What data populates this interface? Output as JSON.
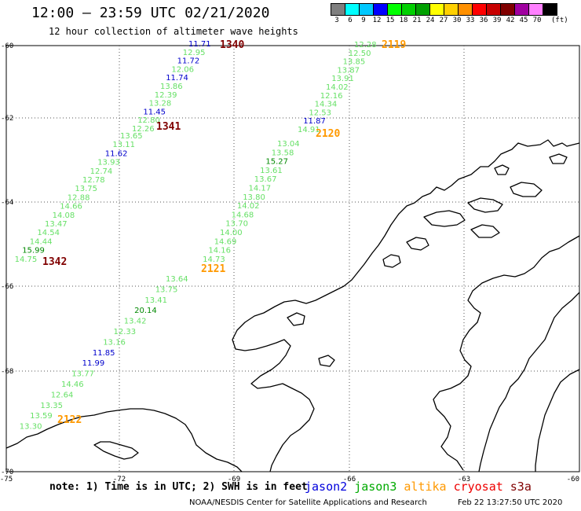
{
  "header": {
    "title": "12:00 – 23:59 UTC 02/21/2020",
    "subtitle": "12 hour collection of altimeter wave heights"
  },
  "legend": {
    "unit": "(ft)",
    "colors": [
      "#7f7f7f",
      "#00ffff",
      "#00c8ff",
      "#0000ff",
      "#00ff00",
      "#00d000",
      "#00a000",
      "#ffff00",
      "#ffd000",
      "#ff9000",
      "#ff0000",
      "#c80000",
      "#800000",
      "#a000a0",
      "#ff80ff",
      "#000000"
    ],
    "labels": [
      "3",
      "6",
      "9",
      "12",
      "15",
      "18",
      "21",
      "24",
      "27",
      "30",
      "33",
      "36",
      "39",
      "42",
      "45",
      "70"
    ]
  },
  "axes": {
    "lat_labels": [
      "-60",
      "-62",
      "-64",
      "-66",
      "-68",
      "-70"
    ],
    "lon_labels": [
      "-75",
      "-72",
      "-69",
      "-66",
      "-63",
      "-60"
    ]
  },
  "track_colors": {
    "light": "#66e066",
    "dark": "#008800",
    "blue": "#0000cc",
    "tag_red": "#800000",
    "tag_orange": "#ff9900"
  },
  "tracks": [
    {
      "tag": "1340",
      "tag_color": "tag_red",
      "points": [
        [
          "11.71",
          "blue"
        ],
        [
          "12.95",
          "light"
        ],
        [
          "11.72",
          "blue"
        ],
        [
          "12.06",
          "light"
        ],
        [
          "11.74",
          "blue"
        ],
        [
          "13.86",
          "light"
        ],
        [
          "12.39",
          "light"
        ],
        [
          "13.28",
          "light"
        ],
        [
          "11.45",
          "blue"
        ],
        [
          "12.80",
          "light"
        ],
        [
          "12.26",
          "light"
        ]
      ]
    },
    {
      "tag": "1341",
      "tag_color": "tag_red",
      "points": [
        [
          "13.65",
          "light"
        ],
        [
          "13.11",
          "light"
        ],
        [
          "11.62",
          "blue"
        ],
        [
          "13.93",
          "light"
        ],
        [
          "12.74",
          "light"
        ],
        [
          "12.78",
          "light"
        ],
        [
          "13.75",
          "light"
        ],
        [
          "12.88",
          "light"
        ],
        [
          "14.66",
          "light"
        ],
        [
          "14.08",
          "light"
        ],
        [
          "13.47",
          "light"
        ],
        [
          "14.54",
          "light"
        ],
        [
          "14.44",
          "light"
        ],
        [
          "15.99",
          "dark"
        ],
        [
          "14.75",
          "light"
        ]
      ]
    },
    {
      "tag": "1342",
      "tag_color": "tag_red",
      "points": []
    },
    {
      "tag": "2119",
      "tag_color": "tag_orange",
      "points": [
        [
          "12.28",
          "light"
        ],
        [
          "12.50",
          "light"
        ],
        [
          "13.85",
          "light"
        ],
        [
          "13.87",
          "light"
        ],
        [
          "13.91",
          "light"
        ],
        [
          "14.02",
          "light"
        ],
        [
          "12.16",
          "light"
        ],
        [
          "14.34",
          "light"
        ],
        [
          "12.53",
          "light"
        ],
        [
          "11.87",
          "blue"
        ],
        [
          "14.91",
          "light"
        ]
      ]
    },
    {
      "tag": "2120",
      "tag_color": "tag_orange",
      "points": [
        [
          "13.04",
          "light"
        ],
        [
          "13.58",
          "light"
        ],
        [
          "15.27",
          "dark"
        ],
        [
          "13.61",
          "light"
        ],
        [
          "13.67",
          "light"
        ],
        [
          "14.17",
          "light"
        ],
        [
          "13.80",
          "light"
        ],
        [
          "14.02",
          "light"
        ],
        [
          "14.68",
          "light"
        ],
        [
          "13.70",
          "light"
        ],
        [
          "14.00",
          "light"
        ],
        [
          "14.69",
          "light"
        ],
        [
          "14.16",
          "light"
        ],
        [
          "14.73",
          "light"
        ]
      ]
    },
    {
      "tag": "2121",
      "tag_color": "tag_orange",
      "points": [
        [
          "13.64",
          "light"
        ],
        [
          "13.75",
          "light"
        ],
        [
          "13.41",
          "light"
        ],
        [
          "20.14",
          "dark"
        ],
        [
          "13.42",
          "light"
        ],
        [
          "12.33",
          "light"
        ],
        [
          "13.16",
          "light"
        ],
        [
          "11.85",
          "blue"
        ],
        [
          "11.99",
          "blue"
        ],
        [
          "13.77",
          "light"
        ],
        [
          "14.46",
          "light"
        ],
        [
          "12.64",
          "light"
        ],
        [
          "13.35",
          "light"
        ],
        [
          "13.59",
          "light"
        ],
        [
          "13.30",
          "light"
        ]
      ]
    },
    {
      "tag": "2122",
      "tag_color": "tag_orange",
      "points": []
    }
  ],
  "footer": {
    "note": "note:  1) Time is in UTC;  2) SWH is in feet",
    "satellites": [
      {
        "name": "jason2",
        "color": "#0000dd"
      },
      {
        "name": "jason3",
        "color": "#00aa00"
      },
      {
        "name": "altika",
        "color": "#ff9900"
      },
      {
        "name": "cryosat",
        "color": "#ee0000"
      },
      {
        "name": "s3a",
        "color": "#800000"
      }
    ],
    "credit": "NOAA/NESDIS Center for Satellite Applications and Research",
    "timestamp": "Feb 22 13:27:50 UTC 2020"
  }
}
